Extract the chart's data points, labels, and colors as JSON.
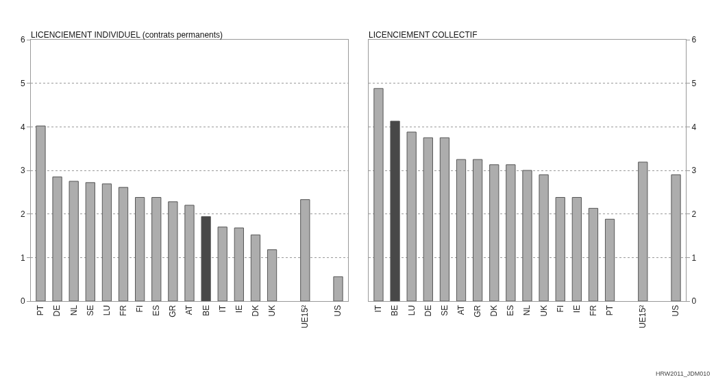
{
  "chart_data": [
    {
      "type": "bar",
      "title": "LICENCIEMENT INDIVIDUEL (contrats permanents)",
      "categories": [
        "PT",
        "DE",
        "NL",
        "SE",
        "LU",
        "FR",
        "FI",
        "ES",
        "GR",
        "AT",
        "BE",
        "IT",
        "IE",
        "DK",
        "UK",
        null,
        "UE15²",
        null,
        "US"
      ],
      "values": [
        4.02,
        2.85,
        2.75,
        2.72,
        2.69,
        2.61,
        2.38,
        2.38,
        2.28,
        2.2,
        1.94,
        1.7,
        1.68,
        1.52,
        1.18,
        null,
        2.33,
        null,
        0.56
      ],
      "colors": [
        "#adadad",
        "#adadad",
        "#adadad",
        "#adadad",
        "#adadad",
        "#adadad",
        "#adadad",
        "#adadad",
        "#adadad",
        "#adadad",
        "#484848",
        "#adadad",
        "#adadad",
        "#adadad",
        "#adadad",
        "#adadad",
        "#adadad",
        "#adadad",
        "#adadad"
      ],
      "ylim": [
        0,
        6
      ],
      "yticks": [
        0,
        1,
        2,
        3,
        4,
        5,
        6
      ],
      "grid": "y",
      "legend": false
    },
    {
      "type": "bar",
      "title": "LICENCIEMENT COLLECTIF",
      "categories": [
        "IT",
        "BE",
        "LU",
        "DE",
        "SE",
        "AT",
        "GR",
        "DK",
        "ES",
        "NL",
        "UK",
        "FI",
        "IE",
        "FR",
        "PT",
        null,
        "UE15²",
        null,
        "US"
      ],
      "values": [
        4.88,
        4.13,
        3.88,
        3.75,
        3.75,
        3.25,
        3.25,
        3.13,
        3.13,
        3.0,
        2.9,
        2.38,
        2.38,
        2.13,
        1.88,
        null,
        3.19,
        null,
        2.9
      ],
      "colors": [
        "#adadad",
        "#484848",
        "#adadad",
        "#adadad",
        "#adadad",
        "#adadad",
        "#adadad",
        "#adadad",
        "#adadad",
        "#adadad",
        "#adadad",
        "#adadad",
        "#adadad",
        "#adadad",
        "#adadad",
        "#adadad",
        "#adadad",
        "#adadad",
        "#adadad"
      ],
      "ylim": [
        0,
        6
      ],
      "yticks": [
        0,
        1,
        2,
        3,
        4,
        5,
        6
      ],
      "grid": "y",
      "legend": false,
      "annotations": [
        "HRW2011_JDM010"
      ]
    }
  ]
}
